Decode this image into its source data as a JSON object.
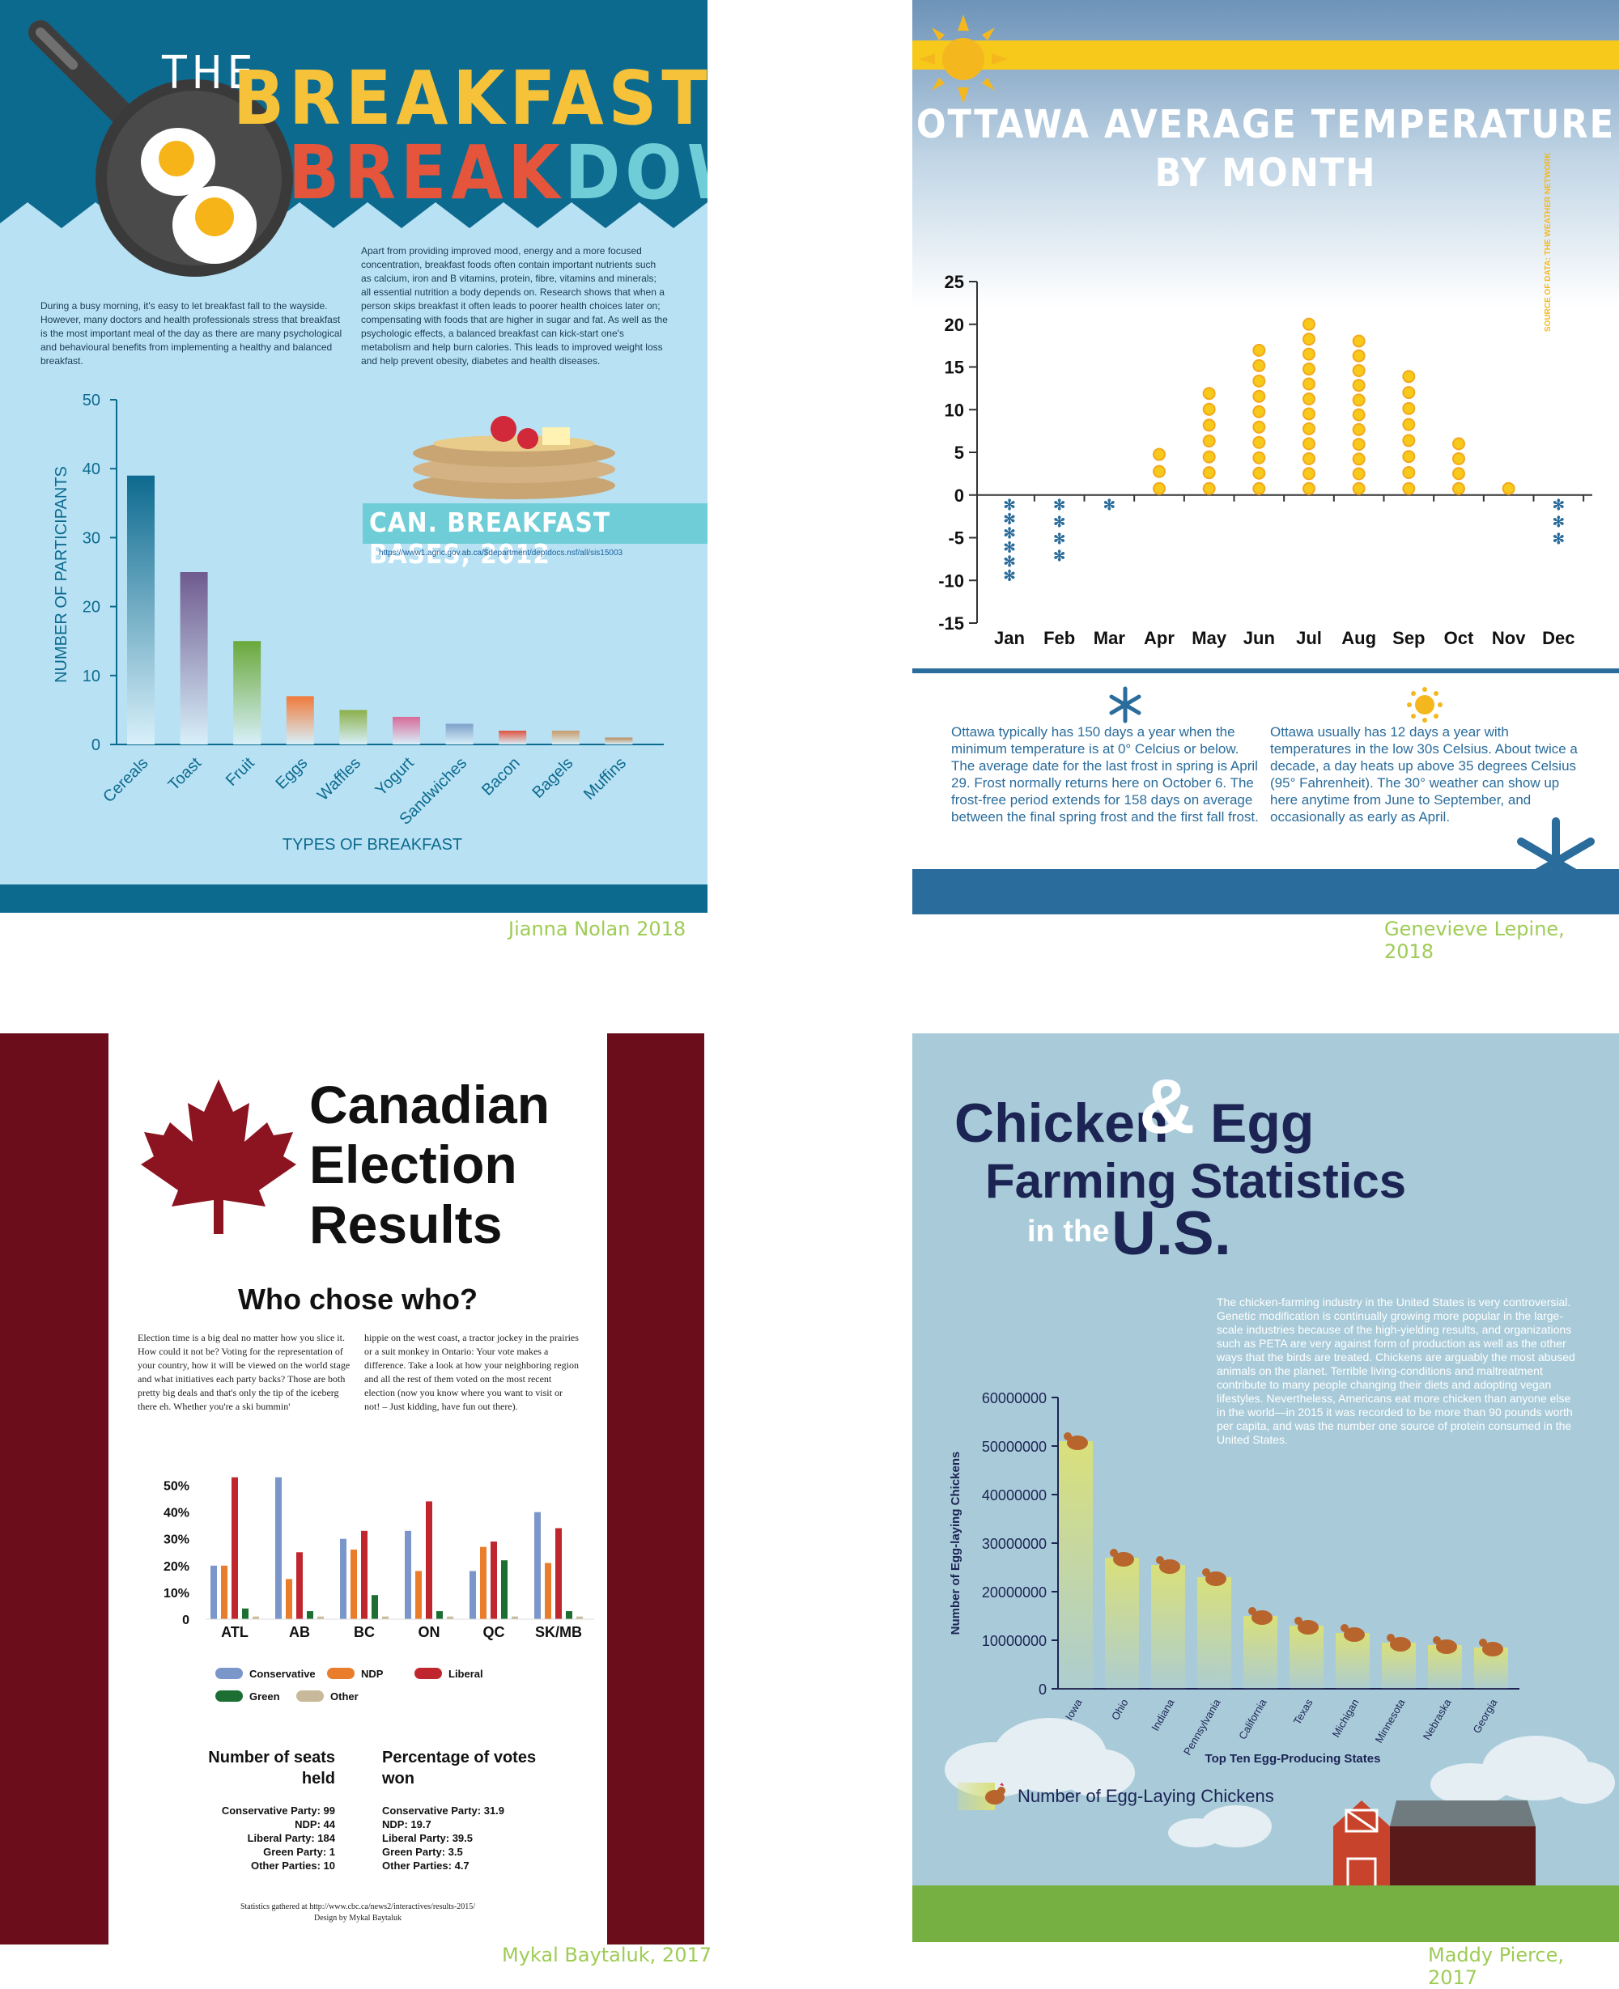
{
  "credits": {
    "p1": "Jianna Nolan 2018",
    "p2": "Genevieve Lepine, 2018",
    "p3": "Mykal Baytaluk, 2017",
    "p4": "Maddy Pierce, 2017"
  },
  "breakfast": {
    "title_the": "THE",
    "title_breakfast": "BREAKFAST",
    "title_break": "BREAK",
    "title_down": "DOWN",
    "intro_left": "During a busy morning, it's easy to let breakfast fall to the wayside. However, many doctors and health professionals stress that breakfast is the most important meal of the day as there are many psychological and behavioural benefits from implementing a healthy and balanced breakfast.",
    "intro_right": "Apart from providing improved mood, energy and a more focused concentration, breakfast foods often contain important nutrients such as calcium, iron and B vitamins, protein, fibre, vitamins and minerals; all essential nutrition a body depends on. Research shows that when a person skips breakfast it often leads to poorer health choices later on; compensating with foods that are higher in sugar and fat. As well as the psychologic effects, a balanced breakfast can kick-start one's metabolism and help burn calories. This leads to improved weight loss and help prevent obesity, diabetes and health diseases.",
    "source_title": "CAN. BREAKFAST BASES, 2012",
    "source_url": "https://www1.agric.gov.ab.ca/$department/deptdocs.nsf/all/sis15003",
    "colors": {
      "bg": "#b8e2f4",
      "header": "#0d6a8f",
      "yellow": "#f5c23a",
      "red": "#e5553b",
      "teal": "#6ecdd6"
    }
  },
  "ottawa": {
    "title_line1": "OTTAWA AVERAGE TEMPERATURE",
    "title_line2": "BY MONTH",
    "side_source": "SOURCE OF DATA: THE WEATHER NETWORK",
    "text_cold": "Ottawa typically has 150 days a year when the minimum temperature is at 0° Celcius or below. The average date for the last frost in spring is April 29. Frost normally returns here on October 6. The frost-free period extends for 158 days on average between the final spring frost and the first fall frost.",
    "text_hot": "Ottawa usually has 12 days a year with temperatures in the low 30s Celsius. About twice a decade, a day heats up above 35 degrees Celsius (95° Fahrenheit). The 30° weather can show up here anytime from June to September, and occasionally as early as April.",
    "colors": {
      "blue": "#2a6c9b",
      "yellow": "#f7c91b",
      "sun": "#f4b81e"
    }
  },
  "election": {
    "title_line1": "Canadian",
    "title_line2": "Election",
    "title_line3": "Results",
    "subtitle": "Who chose who?",
    "intro_left": "Election time is a big deal no matter how you slice it. How could it not be? Voting for the representation of your country, how it will be viewed on the world stage and what initiatives each party backs? Those are both pretty big deals and that's only the tip of the iceberg there eh. Whether you're a ski bummin'",
    "intro_right": "hippie on the west coast, a tractor jockey in the prairies or a suit monkey in Ontario: Your vote makes a difference. Take a look at how your neighboring region and all the rest of them voted on the most recent election (now you know where you want to visit or not! – Just kidding, have fun out there).",
    "seats_heading_1": "Number of seats",
    "seats_heading_2": "held",
    "seats": [
      "Conservative Party: 99",
      "NDP: 44",
      "Liberal Party: 184",
      "Green Party: 1",
      "Other Parties: 10"
    ],
    "votes_heading_1": "Percentage of votes",
    "votes_heading_2": "won",
    "votes": [
      "Conservative Party: 31.9",
      "NDP: 19.7",
      "Liberal Party: 39.5",
      "Green Party: 3.5",
      "Other Parties: 4.7"
    ],
    "footer_1": "Statistics gathered at http://www.cbc.ca/news2/interactives/results-2015/",
    "footer_2": "Design by Mykal Baytaluk",
    "colors": {
      "maroon": "#6b0d1a",
      "leaf": "#8b1420"
    }
  },
  "chicken": {
    "title_chicken": "Chicken",
    "title_amp": "&",
    "title_egg": "Egg",
    "title_farming": "Farming Statistics",
    "title_inthe": "in the",
    "title_us": "U.S.",
    "intro": "The chicken-farming industry in the United States is very controversial. Genetic modification is continually growing more popular in the large-scale industries because of the high-yielding results, and organizations such as PETA are very against form of production as well as the other ways that the birds are treated. Chickens are arguably the most abused animals on the planet. Terrible living-conditions and maltreatment contribute to many people changing their diets and adopting vegan lifestyles. Nevertheless, Americans eat more chicken than anyone else in the world—in 2015 it was recorded to be more than 90 pounds worth per capita, and was the number one source of protein consumed in the United States.",
    "legend_label": "Number of Egg-Laying Chickens",
    "colors": {
      "bg": "#a9cbd9",
      "navy": "#1c2454",
      "grass": "#76b043",
      "barn": "#c8432b"
    }
  },
  "chart_data": [
    {
      "type": "bar",
      "title": "",
      "xlabel": "TYPES OF BREAKFAST",
      "ylabel": "NUMBER OF PARTICIPANTS",
      "ylim": [
        0,
        50
      ],
      "yticks": [
        "0",
        "10",
        "20",
        "30",
        "40",
        "50"
      ],
      "categories": [
        "Cereals",
        "Toast",
        "Fruit",
        "Eggs",
        "Waffles",
        "Yogurt",
        "Sandwiches",
        "Bacon",
        "Bagels",
        "Muffins"
      ],
      "values": [
        39,
        25,
        15,
        7,
        5,
        4,
        3,
        2,
        2,
        1
      ],
      "grid": false
    },
    {
      "type": "bar",
      "title": "OTTAWA AVERAGE TEMPERATURE BY MONTH",
      "xlabel": "",
      "ylabel": "",
      "ylim": [
        -15,
        25
      ],
      "yticks": [
        "25",
        "20",
        "15",
        "10",
        "5",
        "0",
        "-5",
        "-10",
        "-15"
      ],
      "categories": [
        "Jan",
        "Feb",
        "Mar",
        "Apr",
        "May",
        "Jun",
        "Jul",
        "Aug",
        "Sep",
        "Oct",
        "Nov",
        "Dec"
      ],
      "values": [
        -10,
        -8,
        -2,
        6,
        13,
        18,
        21,
        19,
        15,
        7,
        1,
        -6
      ],
      "grid": false
    },
    {
      "type": "bar",
      "title": "",
      "xlabel": "",
      "ylabel": "",
      "ylim": [
        0,
        55
      ],
      "yticks": [
        "50%",
        "40%",
        "30%",
        "20%",
        "10%",
        "0"
      ],
      "categories": [
        "ATL",
        "AB",
        "BC",
        "ON",
        "QC",
        "SK/MB"
      ],
      "series": [
        {
          "name": "Conservative",
          "color": "#7b97c9",
          "values": [
            20,
            53,
            30,
            33,
            18,
            40
          ]
        },
        {
          "name": "NDP",
          "color": "#ea7d2c",
          "values": [
            20,
            15,
            26,
            18,
            27,
            21
          ]
        },
        {
          "name": "Liberal",
          "color": "#c0262e",
          "values": [
            53,
            25,
            33,
            44,
            29,
            34
          ]
        },
        {
          "name": "Green",
          "color": "#1d6e32",
          "values": [
            4,
            3,
            9,
            3,
            22,
            3
          ]
        },
        {
          "name": "Other",
          "color": "#c8b99a",
          "values": [
            1,
            1,
            1,
            1,
            1,
            1
          ]
        }
      ],
      "legend": "bottom",
      "grid": false
    },
    {
      "type": "bar",
      "title": "",
      "xlabel": "Top Ten Egg-Producing States",
      "ylabel": "Number of Egg-laying Chickens",
      "ylim": [
        0,
        60000000
      ],
      "yticks": [
        "0",
        "10000000",
        "20000000",
        "30000000",
        "40000000",
        "50000000",
        "60000000"
      ],
      "categories": [
        "Iowa",
        "Ohio",
        "Indiana",
        "Pennsylvania",
        "California",
        "Texas",
        "Michigan",
        "Minnesota",
        "Nebraska",
        "Georgia"
      ],
      "values": [
        51000000,
        27000000,
        25500000,
        23000000,
        15000000,
        13000000,
        11500000,
        9500000,
        9000000,
        8500000
      ],
      "grid": false
    }
  ]
}
